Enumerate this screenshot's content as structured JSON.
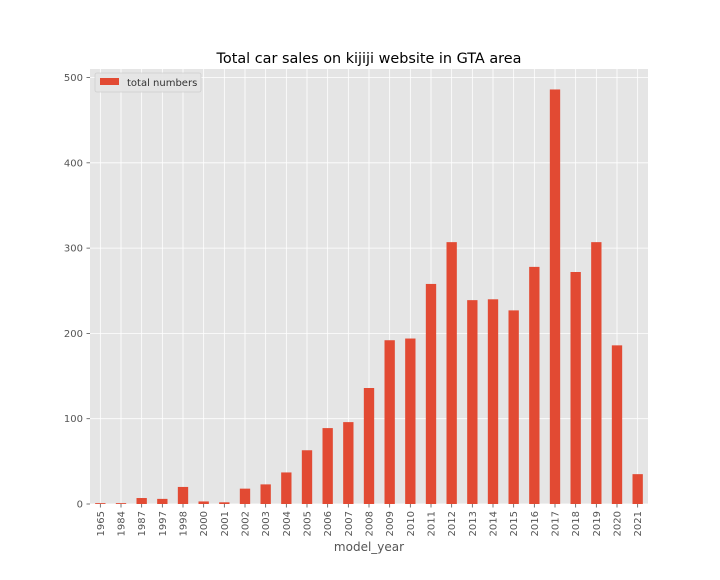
{
  "chart_data": {
    "type": "bar",
    "title": "Total car sales on kijiji website in GTA area",
    "xlabel": "model_year",
    "ylabel": "",
    "ylim": [
      0,
      510
    ],
    "yticks": [
      0,
      100,
      200,
      300,
      400,
      500
    ],
    "grid": true,
    "legend_position": "upper-left",
    "categories": [
      "1965",
      "1984",
      "1987",
      "1997",
      "1998",
      "2000",
      "2001",
      "2002",
      "2003",
      "2004",
      "2005",
      "2006",
      "2007",
      "2008",
      "2009",
      "2010",
      "2011",
      "2012",
      "2013",
      "2014",
      "2015",
      "2016",
      "2017",
      "2018",
      "2019",
      "2020",
      "2021"
    ],
    "series": [
      {
        "name": "total numbers",
        "color": "#e24a33",
        "values": [
          1,
          1,
          7,
          6,
          20,
          3,
          2,
          18,
          23,
          37,
          63,
          89,
          96,
          136,
          192,
          194,
          258,
          307,
          239,
          240,
          227,
          278,
          486,
          272,
          307,
          186,
          35
        ]
      }
    ]
  },
  "style": {
    "plot_background": "#e5e5e5",
    "grid_color": "#ffffff",
    "page_background": "#ffffff"
  }
}
